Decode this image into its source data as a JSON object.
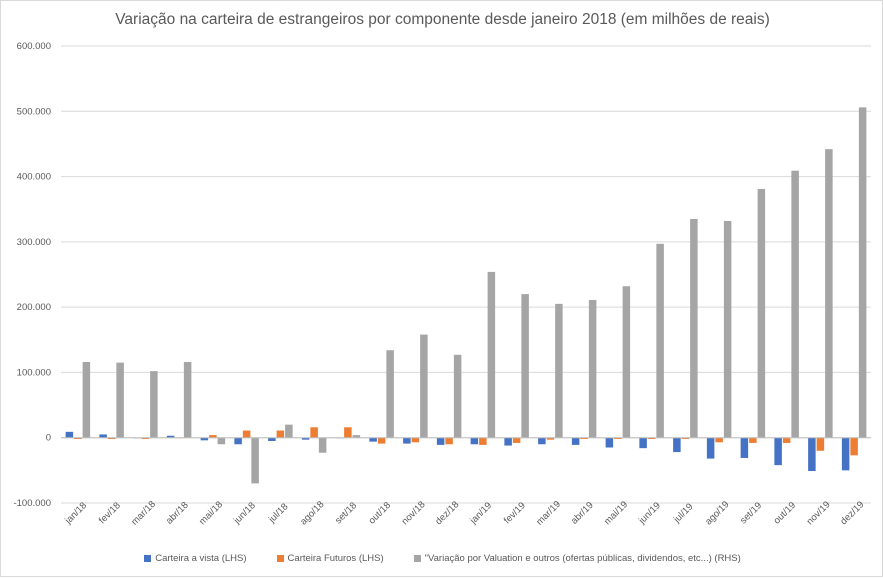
{
  "chart_data": {
    "type": "bar",
    "title": "Variação na carteira de estrangeiros por componente desde janeiro 2018 (em milhões de reais)",
    "categories": [
      "jan/18",
      "fev/18",
      "mar/18",
      "abr/18",
      "mai/18",
      "jun/18",
      "jul/18",
      "ago/18",
      "set/18",
      "out/18",
      "nov/18",
      "dez/18",
      "jan/19",
      "fev/19",
      "mar/19",
      "abr/19",
      "mai/19",
      "jun/19",
      "jul/19",
      "ago/19",
      "set/19",
      "out/19",
      "nov/19",
      "dez/19"
    ],
    "ylim": [
      -100000,
      600000
    ],
    "yticks": [
      -100000,
      0,
      100000,
      200000,
      300000,
      400000,
      500000,
      600000
    ],
    "ytick_labels": [
      "-100.000",
      "0",
      "100.000",
      "200.000",
      "300.000",
      "400.000",
      "500.000",
      "600.000"
    ],
    "series": [
      {
        "name": "Carteira a vista  (LHS)",
        "color": "#4472c4",
        "values": [
          9000,
          5000,
          0,
          3000,
          -4000,
          -10000,
          -5000,
          -3000,
          0,
          -6000,
          -9000,
          -11000,
          -10000,
          -12000,
          -10000,
          -11000,
          -15000,
          -16000,
          -22000,
          -32000,
          -31000,
          -42000,
          -51000,
          -50000
        ]
      },
      {
        "name": "Carteira Futuros (LHS)",
        "color": "#ed7d31",
        "values": [
          -2000,
          -2000,
          -2000,
          0,
          4000,
          11000,
          11000,
          16000,
          16000,
          -9000,
          -7000,
          -10000,
          -11000,
          -8000,
          -3000,
          -2000,
          -2000,
          -2000,
          -2000,
          -7000,
          -8000,
          -8000,
          -20000,
          -27000
        ]
      },
      {
        "name": "\"Variação por Valuation  e outros (ofertas públicas, dividendos, etc...)  (RHS)",
        "color": "#a5a5a5",
        "values": [
          116000,
          115000,
          102000,
          116000,
          -10000,
          -70000,
          20000,
          -23000,
          4000,
          134000,
          158000,
          127000,
          254000,
          220000,
          205000,
          211000,
          232000,
          297000,
          335000,
          332000,
          381000,
          409000,
          442000,
          506000
        ]
      }
    ]
  }
}
